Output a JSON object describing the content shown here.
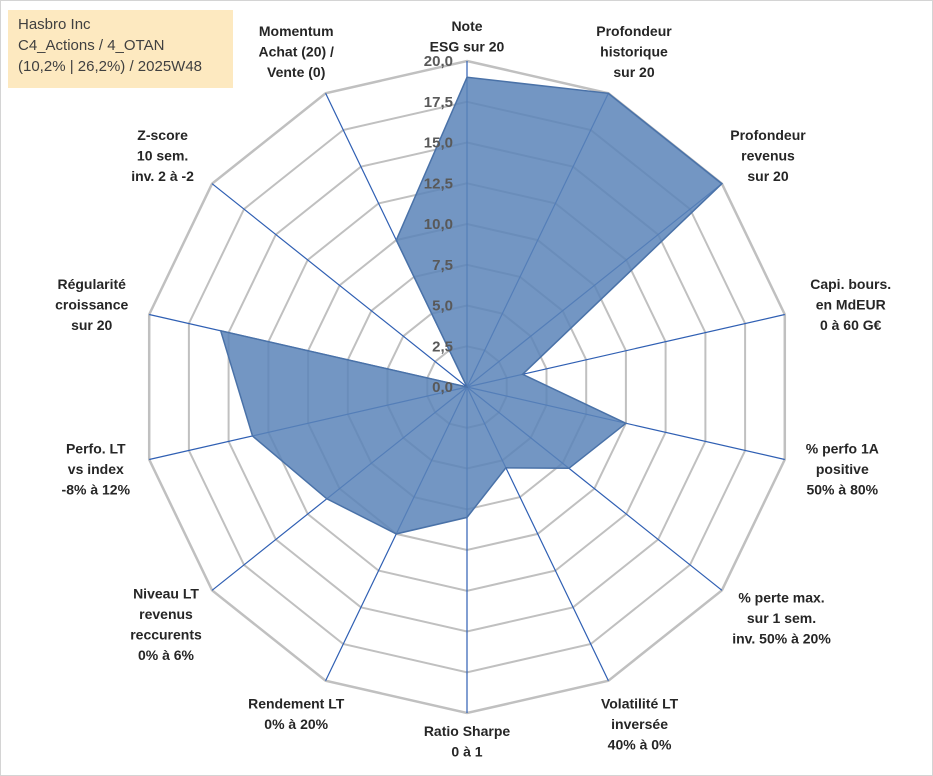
{
  "info": {
    "company": "Hasbro Inc",
    "line2": "C4_Actions / 4_OTAN",
    "line3": "(10,2% | 26,2%) / 2025W48"
  },
  "colors": {
    "grid": "#c0c0c0",
    "spoke": "#2f5fb3",
    "fill": "#5b84b8",
    "stroke": "#4a72a8"
  },
  "chart_data": {
    "type": "radar",
    "title": "Hasbro Inc",
    "rmin": 0,
    "rmax": 20,
    "ticks": [
      "0,0",
      "2,5",
      "5,0",
      "7,5",
      "10,0",
      "12,5",
      "15,0",
      "17,5",
      "20,0"
    ],
    "grid": true,
    "legend": "none",
    "axes": [
      {
        "label": [
          "Note",
          "ESG sur 20"
        ],
        "value": 19
      },
      {
        "label": [
          "Profondeur",
          "historique",
          "sur 20"
        ],
        "value": 20
      },
      {
        "label": [
          "Profondeur",
          "revenus",
          "sur 20"
        ],
        "value": 20
      },
      {
        "label": [
          "Capi. bours.",
          "en MdEUR",
          "0 à 60 G€"
        ],
        "value": 3.5
      },
      {
        "label": [
          "% perfo 1A",
          "positive",
          "50% à 80%"
        ],
        "value": 10
      },
      {
        "label": [
          "% perte max.",
          "sur 1 sem.",
          "inv. 50% à 20%"
        ],
        "value": 8
      },
      {
        "label": [
          "Volatilité LT",
          "inversée",
          "40% à 0%"
        ],
        "value": 5.5
      },
      {
        "label": [
          "Ratio Sharpe",
          "0 à 1"
        ],
        "value": 8
      },
      {
        "label": [
          "Rendement LT",
          "0% à 20%"
        ],
        "value": 10
      },
      {
        "label": [
          "Niveau LT",
          "revenus",
          "reccurents",
          "0% à 6%"
        ],
        "value": 11
      },
      {
        "label": [
          "Perfo. LT",
          "vs index",
          "-8% à 12%"
        ],
        "value": 13.5
      },
      {
        "label": [
          "Régularité",
          "croissance",
          "sur 20"
        ],
        "value": 15.5
      },
      {
        "label": [
          "Z-score",
          "10 sem.",
          "inv. 2 à -2"
        ],
        "value": 0
      },
      {
        "label": [
          "Momentum",
          "Achat (20) /",
          "Vente (0)"
        ],
        "value": 10
      }
    ]
  }
}
